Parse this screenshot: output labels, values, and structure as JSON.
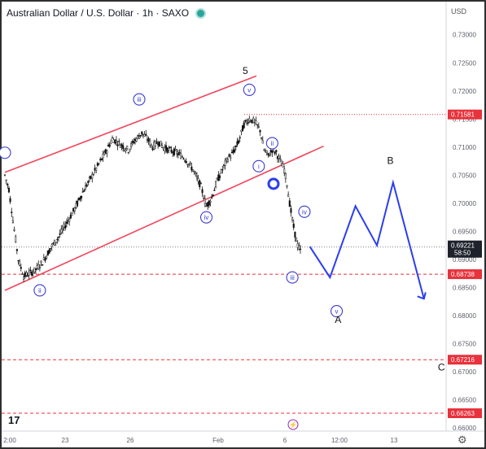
{
  "header": {
    "title": "Australian Dollar / U.S. Dollar · 1h · SAXO",
    "currency": "USD"
  },
  "footer": {
    "logo_text": "17",
    "settings_icon": "gear-icon",
    "lightning_icon": "lightning-icon"
  },
  "colors": {
    "channel": "#f0465b",
    "wave_label": "#3b3bd6",
    "projection": "#2a3ef0",
    "candle": "#111111",
    "red_tag": "#e8323c",
    "dark_tag": "#1e222d"
  },
  "chart_data": {
    "type": "candlestick",
    "title": "Australian Dollar / U.S. Dollar · 1h · SAXO",
    "y_ticks": [
      "0.73000",
      "0.72500",
      "0.72000",
      "0.71500",
      "0.71000",
      "0.70500",
      "0.70000",
      "0.69500",
      "0.69000",
      "0.68500",
      "0.68000",
      "0.67500",
      "0.67000",
      "0.66500",
      "0.66000"
    ],
    "x_ticks": [
      "2:00",
      "23",
      "26",
      "Feb",
      "6",
      "12:00",
      "13"
    ],
    "ylim": [
      0.658,
      0.733
    ],
    "series_close_path": [
      [
        0,
        0.705
      ],
      [
        3,
        0.7025
      ],
      [
        6,
        0.697
      ],
      [
        10,
        0.69
      ],
      [
        14,
        0.687
      ],
      [
        18,
        0.6875
      ],
      [
        22,
        0.688
      ],
      [
        28,
        0.6895
      ],
      [
        34,
        0.692
      ],
      [
        40,
        0.694
      ],
      [
        46,
        0.6965
      ],
      [
        52,
        0.699
      ],
      [
        58,
        0.702
      ],
      [
        64,
        0.7045
      ],
      [
        70,
        0.707
      ],
      [
        76,
        0.7095
      ],
      [
        80,
        0.7115
      ],
      [
        86,
        0.7105
      ],
      [
        92,
        0.7095
      ],
      [
        96,
        0.711
      ],
      [
        102,
        0.7125
      ],
      [
        106,
        0.7115
      ],
      [
        110,
        0.71
      ],
      [
        114,
        0.711
      ],
      [
        118,
        0.71
      ],
      [
        122,
        0.7095
      ],
      [
        128,
        0.709
      ],
      [
        134,
        0.708
      ],
      [
        140,
        0.706
      ],
      [
        146,
        0.703
      ],
      [
        150,
        0.6995
      ],
      [
        154,
        0.701
      ],
      [
        158,
        0.704
      ],
      [
        162,
        0.706
      ],
      [
        166,
        0.708
      ],
      [
        170,
        0.709
      ],
      [
        174,
        0.711
      ],
      [
        178,
        0.714
      ],
      [
        182,
        0.715
      ],
      [
        186,
        0.7145
      ],
      [
        190,
        0.713
      ],
      [
        193,
        0.7095
      ],
      [
        196,
        0.7085
      ],
      [
        199,
        0.7095
      ],
      [
        202,
        0.709
      ],
      [
        205,
        0.7075
      ],
      [
        208,
        0.706
      ],
      [
        210,
        0.7035
      ],
      [
        212,
        0.7
      ],
      [
        214,
        0.697
      ],
      [
        216,
        0.6945
      ],
      [
        218,
        0.6925
      ],
      [
        220,
        0.6915
      ],
      [
        222,
        0.6922
      ],
      [
        224,
        0.6935
      ],
      [
        226,
        0.693
      ],
      [
        228,
        0.6922
      ]
    ],
    "channel_lines": [
      {
        "from": [
          0,
          0.7055
        ],
        "to": [
          180,
          0.7205
        ]
      },
      {
        "from": [
          0,
          0.6845
        ],
        "to": [
          230,
          0.708
        ]
      }
    ],
    "levels": [
      {
        "value": 0.71581,
        "label": "0.71581",
        "style": "dotted"
      },
      {
        "value": 0.68738,
        "label": "0.68738",
        "style": "dashed"
      },
      {
        "value": 0.67216,
        "label": "0.67216",
        "style": "dashed"
      },
      {
        "value": 0.66263,
        "label": "0.66263",
        "style": "dashed"
      }
    ],
    "current_price": {
      "value": 0.69221,
      "label": "0.69221",
      "timer": "58:50"
    },
    "wave_labels": [
      {
        "text": "iii",
        "x": 100,
        "y": 0.7185
      },
      {
        "text": "ii",
        "x": 26,
        "y": 0.6845
      },
      {
        "text": "iv",
        "x": 150,
        "y": 0.6975
      },
      {
        "text": "v",
        "x": 182,
        "y": 0.7202
      },
      {
        "text": "ii",
        "x": 199,
        "y": 0.7107
      },
      {
        "text": "i",
        "x": 189,
        "y": 0.7066
      },
      {
        "text": "iv",
        "x": 223,
        "y": 0.6985
      },
      {
        "text": "iii",
        "x": 214,
        "y": 0.6868
      },
      {
        "text": "v",
        "x": 247,
        "y": 0.6808
      },
      {
        "text": "",
        "x": 0,
        "y": 0.709
      }
    ],
    "big_labels": [
      {
        "text": "5",
        "x": 179,
        "y": 0.723
      },
      {
        "text": "A",
        "x": 248,
        "y": 0.6787
      },
      {
        "text": "B",
        "x": 287,
        "y": 0.707
      },
      {
        "text": "C",
        "x": 325,
        "y": 0.6702
      }
    ],
    "projection_path": [
      [
        227,
        0.6923
      ],
      [
        242,
        0.6868
      ],
      [
        261,
        0.6995
      ],
      [
        277,
        0.6925
      ],
      [
        289,
        0.7037
      ],
      [
        312,
        0.683
      ]
    ]
  }
}
